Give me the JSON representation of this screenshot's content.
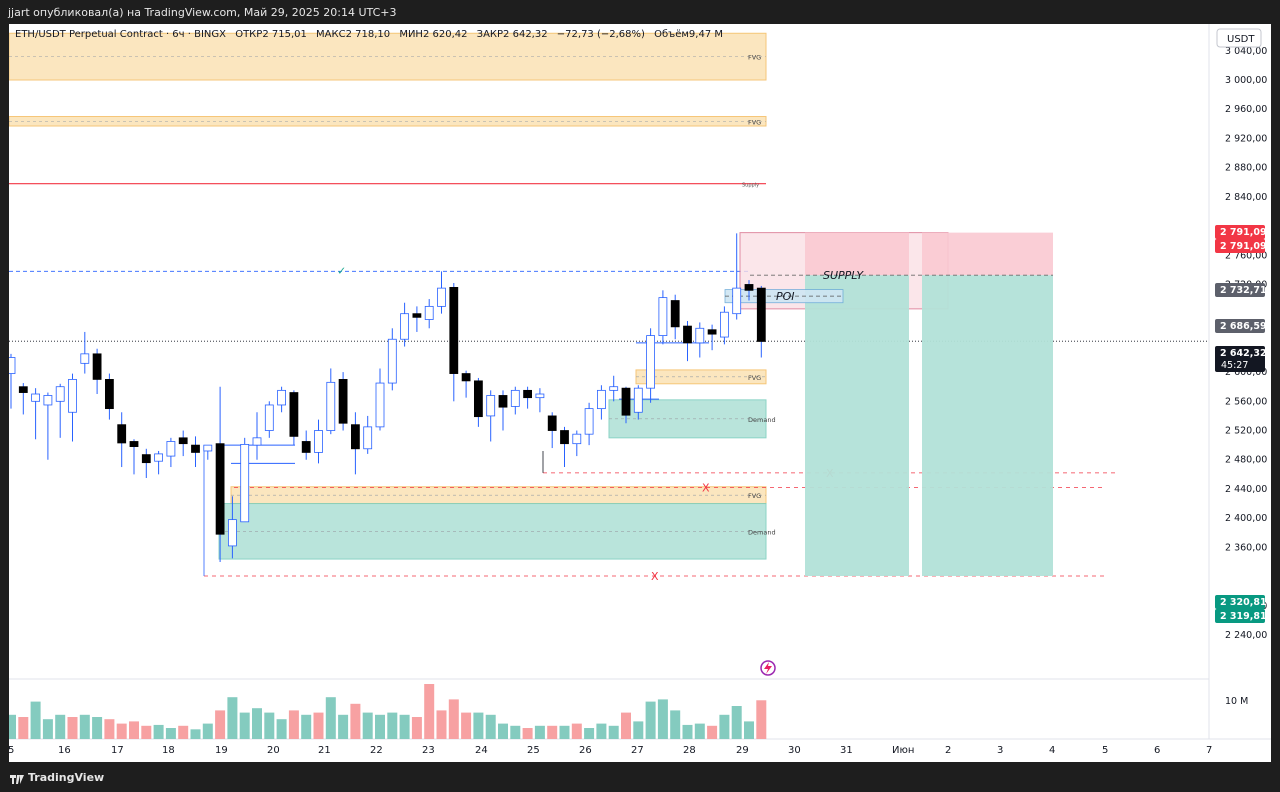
{
  "header": {
    "publish_text": "jjart опубликовал(а) на TradingView.com, Май 29, 2025 20:14 UTC+3"
  },
  "legend": {
    "symbol": "ETH/USDT Perpetual Contract · 6ч · BINGX",
    "open": "ОТКР2 715,01",
    "high": "МАКС2 718,10",
    "low": "МИН2 620,42",
    "close": "ЗАКР2 642,32",
    "change": "−72,73 (−2,68%)",
    "volume": "Объём9,47 M"
  },
  "footer": {
    "brand": "TradingView"
  },
  "colors": {
    "up": "#ffffff",
    "down": "#000000",
    "wick": "#2962ff",
    "vol_up": "#84cbbf",
    "vol_down": "#f7a1a2",
    "fvg": "#fbe4b9",
    "demand": "#b2e2d8",
    "supply": "#f9c9d1"
  },
  "chart_data": {
    "type": "candlestick",
    "currency": "USDT",
    "y_ticks": [
      "3 040,00",
      "3 000,00",
      "2 960,00",
      "2 920,00",
      "2 880,00",
      "2 840,00",
      "2 760,00",
      "2 720,00",
      "2 600,00",
      "2 560,00",
      "2 520,00",
      "2 480,00",
      "2 440,00",
      "2 400,00",
      "2 360,00",
      "2 280,00",
      "2 240,00"
    ],
    "x_ticks": [
      "5",
      "16",
      "17",
      "18",
      "19",
      "20",
      "21",
      "22",
      "23",
      "24",
      "25",
      "26",
      "27",
      "28",
      "29",
      "30",
      "31",
      "Июн",
      "2",
      "3",
      "4",
      "5",
      "6",
      "7"
    ],
    "price_labels": [
      {
        "text": "2 791,09",
        "value": 2791.09,
        "bg": "#f23645"
      },
      {
        "text": "2 791,09",
        "value": 2791.09,
        "bg": "#f23645",
        "second": true
      },
      {
        "text": "2 732,71",
        "value": 2732.71,
        "bg": "#5d606b"
      },
      {
        "text": "2 686,59",
        "value": 2686.59,
        "bg": "#5d606b"
      },
      {
        "text": "2 642,32",
        "value": 2642.32,
        "bg": "#131722",
        "sub": "45:27"
      },
      {
        "text": "2 320,81",
        "value": 2320.81,
        "bg": "#089981"
      },
      {
        "text": "2 319,81",
        "value": 2319.81,
        "bg": "#089981",
        "second": true
      }
    ],
    "volume_label": "10 M",
    "annotations": {
      "zones": [
        {
          "label": "FVG",
          "top": 3064,
          "bottom": 3000,
          "type": "fvg"
        },
        {
          "label": "FVG",
          "top": 2950,
          "bottom": 2937,
          "type": "fvg"
        },
        {
          "label": "Supply",
          "top": 2858,
          "bottom": 2858,
          "type": "line"
        },
        {
          "label": "FVG",
          "top": 2603,
          "bottom": 2584,
          "type": "fvg"
        },
        {
          "label": "Demand",
          "top": 2562,
          "bottom": 2510,
          "type": "demand"
        },
        {
          "label": "FVG",
          "top": 2443,
          "bottom": 2420,
          "type": "fvg"
        },
        {
          "label": "Demand",
          "top": 2420,
          "bottom": 2344,
          "type": "demand"
        }
      ],
      "supply_text": "SUPPLY",
      "poi_text": "POI",
      "x_marks": [
        "X",
        "X",
        "X"
      ]
    },
    "candles": [
      [
        2598,
        2620,
        2580,
        2625,
        2550
      ],
      [
        2580,
        2572,
        2545,
        2585,
        2542
      ],
      [
        2560,
        2570,
        2555,
        2578,
        2508
      ],
      [
        2555,
        2568,
        2535,
        2572,
        2480
      ],
      [
        2560,
        2580,
        2555,
        2584,
        2510
      ],
      [
        2545,
        2590,
        2540,
        2598,
        2505
      ],
      [
        2612,
        2625,
        2602,
        2655,
        2598
      ],
      [
        2625,
        2590,
        2585,
        2632,
        2570
      ],
      [
        2590,
        2550,
        2548,
        2598,
        2535
      ],
      [
        2528,
        2503,
        2490,
        2545,
        2470
      ],
      [
        2505,
        2498,
        2485,
        2508,
        2460
      ],
      [
        2487,
        2476,
        2472,
        2495,
        2455
      ],
      [
        2478,
        2488,
        2475,
        2492,
        2460
      ],
      [
        2485,
        2505,
        2482,
        2510,
        2470
      ],
      [
        2510,
        2502,
        2498,
        2520,
        2485
      ],
      [
        2500,
        2490,
        2486,
        2512,
        2470
      ],
      [
        2492,
        2500,
        2487,
        2500,
        2480
      ],
      [
        2502,
        2378,
        2368,
        2580,
        2340
      ],
      [
        2362,
        2398,
        2345,
        2430,
        2345
      ],
      [
        2395,
        2501,
        2390,
        2510,
        2430
      ],
      [
        2500,
        2510,
        2495,
        2545,
        2480
      ],
      [
        2520,
        2555,
        2515,
        2560,
        2510
      ],
      [
        2555,
        2575,
        2548,
        2580,
        2545
      ],
      [
        2572,
        2512,
        2505,
        2575,
        2500
      ],
      [
        2505,
        2490,
        2485,
        2520,
        2480
      ],
      [
        2490,
        2520,
        2485,
        2535,
        2475
      ],
      [
        2520,
        2586,
        2518,
        2605,
        2515
      ],
      [
        2590,
        2530,
        2525,
        2600,
        2520
      ],
      [
        2528,
        2495,
        2462,
        2545,
        2460
      ],
      [
        2495,
        2525,
        2490,
        2540,
        2488
      ],
      [
        2525,
        2585,
        2522,
        2605,
        2520
      ],
      [
        2585,
        2645,
        2580,
        2660,
        2575
      ],
      [
        2645,
        2680,
        2640,
        2695,
        2635
      ],
      [
        2680,
        2675,
        2665,
        2690,
        2655
      ],
      [
        2672,
        2690,
        2668,
        2700,
        2660
      ],
      [
        2690,
        2715,
        2688,
        2738,
        2680
      ],
      [
        2716,
        2598,
        2590,
        2722,
        2560
      ],
      [
        2598,
        2588,
        2572,
        2602,
        2565
      ],
      [
        2588,
        2539,
        2530,
        2592,
        2525
      ],
      [
        2540,
        2568,
        2535,
        2575,
        2505
      ],
      [
        2568,
        2552,
        2548,
        2575,
        2520
      ],
      [
        2553,
        2575,
        2549,
        2580,
        2542
      ],
      [
        2575,
        2565,
        2560,
        2580,
        2550
      ],
      [
        2565,
        2570,
        2560,
        2578,
        2545
      ],
      [
        2540,
        2520,
        2515,
        2545,
        2496
      ],
      [
        2520,
        2502,
        2500,
        2525,
        2470
      ],
      [
        2502,
        2515,
        2498,
        2520,
        2485
      ],
      [
        2515,
        2550,
        2510,
        2558,
        2500
      ],
      [
        2550,
        2575,
        2545,
        2582,
        2535
      ],
      [
        2575,
        2580,
        2568,
        2595,
        2560
      ],
      [
        2578,
        2541,
        2537,
        2580,
        2530
      ],
      [
        2545,
        2578,
        2540,
        2582,
        2535
      ],
      [
        2578,
        2650,
        2575,
        2660,
        2558
      ],
      [
        2650,
        2702,
        2645,
        2712,
        2638
      ],
      [
        2698,
        2662,
        2655,
        2706,
        2645
      ],
      [
        2663,
        2640,
        2635,
        2670,
        2615
      ],
      [
        2640,
        2660,
        2636,
        2668,
        2620
      ],
      [
        2658,
        2652,
        2648,
        2665,
        2630
      ],
      [
        2648,
        2682,
        2645,
        2690,
        2638
      ],
      [
        2680,
        2715,
        2678,
        2790,
        2672
      ],
      [
        2720,
        2712,
        2710,
        2726,
        2698
      ],
      [
        2715,
        2642,
        2638,
        2718,
        2620
      ]
    ],
    "volumes": [
      [
        0.55,
        1
      ],
      [
        0.5,
        0
      ],
      [
        0.85,
        1
      ],
      [
        0.45,
        1
      ],
      [
        0.55,
        1
      ],
      [
        0.5,
        0
      ],
      [
        0.55,
        1
      ],
      [
        0.5,
        1
      ],
      [
        0.45,
        0
      ],
      [
        0.35,
        0
      ],
      [
        0.4,
        0
      ],
      [
        0.3,
        0
      ],
      [
        0.32,
        1
      ],
      [
        0.25,
        1
      ],
      [
        0.3,
        0
      ],
      [
        0.22,
        1
      ],
      [
        0.35,
        1
      ],
      [
        0.65,
        0
      ],
      [
        0.95,
        1
      ],
      [
        0.6,
        1
      ],
      [
        0.7,
        1
      ],
      [
        0.6,
        1
      ],
      [
        0.45,
        1
      ],
      [
        0.65,
        0
      ],
      [
        0.55,
        1
      ],
      [
        0.6,
        0
      ],
      [
        0.95,
        1
      ],
      [
        0.55,
        1
      ],
      [
        0.8,
        0
      ],
      [
        0.6,
        1
      ],
      [
        0.55,
        1
      ],
      [
        0.6,
        1
      ],
      [
        0.55,
        1
      ],
      [
        0.5,
        0
      ],
      [
        1.25,
        0
      ],
      [
        0.65,
        0
      ],
      [
        0.9,
        0
      ],
      [
        0.6,
        0
      ],
      [
        0.6,
        1
      ],
      [
        0.55,
        1
      ],
      [
        0.35,
        1
      ],
      [
        0.3,
        1
      ],
      [
        0.25,
        0
      ],
      [
        0.3,
        1
      ],
      [
        0.3,
        0
      ],
      [
        0.3,
        1
      ],
      [
        0.35,
        0
      ],
      [
        0.25,
        1
      ],
      [
        0.35,
        1
      ],
      [
        0.3,
        1
      ],
      [
        0.6,
        0
      ],
      [
        0.4,
        1
      ],
      [
        0.85,
        1
      ],
      [
        0.9,
        1
      ],
      [
        0.65,
        1
      ],
      [
        0.32,
        1
      ],
      [
        0.35,
        1
      ],
      [
        0.3,
        0
      ],
      [
        0.55,
        1
      ],
      [
        0.75,
        1
      ],
      [
        0.4,
        1
      ],
      [
        0.88,
        0
      ]
    ]
  }
}
